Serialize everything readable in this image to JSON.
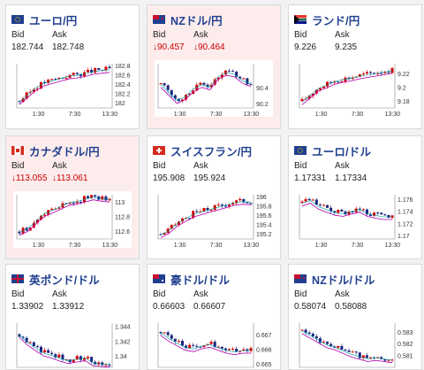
{
  "cards": [
    {
      "pair": "ユーロ/円",
      "flag": "eu-flag",
      "hl": false,
      "bid_label": "Bid",
      "ask_label": "Ask",
      "bid": "182.744",
      "ask": "182.748",
      "bid_down": false,
      "ask_down": false,
      "ymin": 181.9,
      "ymax": 182.85,
      "yticks": [
        "182.8",
        "182.6",
        "182.4",
        "182.2",
        "182"
      ],
      "xticks": [
        "1:30",
        "7:30",
        "13:30"
      ],
      "trend": [
        182.05,
        182.2,
        182.35,
        182.45,
        182.5,
        182.55,
        182.6,
        182.62,
        182.65,
        182.7,
        182.72,
        182.74
      ]
    },
    {
      "pair": "NZドル/円",
      "flag": "nz-flag",
      "hl": true,
      "bid_label": "Bid",
      "ask_label": "Ask",
      "bid": "↓90.457",
      "ask": "↓90.464",
      "bid_down": true,
      "ask_down": true,
      "ymin": 90.15,
      "ymax": 90.7,
      "yticks": [
        "90.4",
        "90.2"
      ],
      "xticks": [
        "1:30",
        "7:30",
        "13:30"
      ],
      "trend": [
        90.45,
        90.35,
        90.25,
        90.3,
        90.4,
        90.45,
        90.42,
        90.55,
        90.6,
        90.58,
        90.5,
        90.46
      ]
    },
    {
      "pair": "ランド/円",
      "flag": "za-flag",
      "hl": false,
      "bid_label": "Bid",
      "ask_label": "Ask",
      "bid": "9.226",
      "ask": "9.235",
      "bid_down": false,
      "ask_down": false,
      "ymin": 9.17,
      "ymax": 9.235,
      "yticks": [
        "9.22",
        "9.2",
        "9.18"
      ],
      "xticks": [
        "1:30",
        "7:30",
        "13:30"
      ],
      "trend": [
        9.18,
        9.19,
        9.2,
        9.205,
        9.21,
        9.213,
        9.215,
        9.218,
        9.22,
        9.222,
        9.224,
        9.226
      ]
    },
    {
      "pair": "カナダドル/円",
      "flag": "ca-flag",
      "hl": true,
      "bid_label": "Bid",
      "ask_label": "Ask",
      "bid": "↓113.055",
      "ask": "↓113.061",
      "bid_down": true,
      "ask_down": true,
      "ymin": 112.5,
      "ymax": 113.1,
      "yticks": [
        "113",
        "112.8",
        "112.6"
      ],
      "xticks": [
        "1:30",
        "7:30",
        "13:30"
      ],
      "trend": [
        112.6,
        112.65,
        112.75,
        112.85,
        112.9,
        112.95,
        113.0,
        113.02,
        113.05,
        113.08,
        113.06,
        113.05
      ]
    },
    {
      "pair": "スイスフラン/円",
      "flag": "ch-flag",
      "hl": false,
      "bid_label": "Bid",
      "ask_label": "Ask",
      "bid": "195.908",
      "ask": "195.924",
      "bid_down": false,
      "ask_down": false,
      "ymin": 195.1,
      "ymax": 196.05,
      "yticks": [
        "196",
        "195.8",
        "195.6",
        "195.4",
        "195.2"
      ],
      "xticks": [
        "1:30",
        "7:30",
        "13:30"
      ],
      "trend": [
        195.2,
        195.3,
        195.45,
        195.55,
        195.65,
        195.7,
        195.75,
        195.8,
        195.85,
        195.9,
        195.92,
        195.91
      ]
    },
    {
      "pair": "ユーロ/ドル",
      "flag": "eu-flag",
      "hl": false,
      "bid_label": "Bid",
      "ask_label": "Ask",
      "bid": "1.17331",
      "ask": "1.17334",
      "bid_down": false,
      "ask_down": false,
      "ymin": 1.1695,
      "ymax": 1.1768,
      "yticks": [
        "1.176",
        "1.174",
        "1.172",
        "1.17"
      ],
      "xticks": [
        "1:30",
        "7:30",
        "13:30"
      ],
      "trend": [
        1.1755,
        1.176,
        1.175,
        1.1745,
        1.174,
        1.1738,
        1.1742,
        1.1745,
        1.1738,
        1.1735,
        1.1733,
        1.1733
      ]
    },
    {
      "pair": "英ポンド/ドル",
      "flag": "uk-flag",
      "hl": false,
      "bid_label": "Bid",
      "ask_label": "Ask",
      "bid": "1.33902",
      "ask": "1.33912",
      "bid_down": false,
      "ask_down": false,
      "ymin": 1.3385,
      "ymax": 1.3445,
      "yticks": [
        "1.344",
        "1.342",
        "1.34"
      ],
      "xticks": [],
      "trend": [
        1.343,
        1.342,
        1.3412,
        1.3405,
        1.3402,
        1.3398,
        1.3395,
        1.3397,
        1.3399,
        1.3392,
        1.3391,
        1.339
      ]
    },
    {
      "pair": "豪ドル/ドル",
      "flag": "au-flag",
      "hl": false,
      "bid_label": "Bid",
      "ask_label": "Ask",
      "bid": "0.66603",
      "ask": "0.66607",
      "bid_down": false,
      "ask_down": false,
      "ymin": 0.6648,
      "ymax": 0.6678,
      "yticks": [
        "0.667",
        "0.666",
        "0.665"
      ],
      "xticks": [],
      "trend": [
        0.6672,
        0.6668,
        0.6665,
        0.6662,
        0.6661,
        0.6663,
        0.6664,
        0.6662,
        0.666,
        0.6659,
        0.666,
        0.666
      ]
    },
    {
      "pair": "NZドル/ドル",
      "flag": "nz-flag",
      "hl": false,
      "bid_label": "Bid",
      "ask_label": "Ask",
      "bid": "0.58074",
      "ask": "0.58088",
      "bid_down": false,
      "ask_down": false,
      "ymin": 0.58,
      "ymax": 0.5838,
      "yticks": [
        "0.583",
        "0.582",
        "0.581"
      ],
      "xticks": [],
      "trend": [
        0.5832,
        0.5828,
        0.5824,
        0.582,
        0.5818,
        0.5815,
        0.5812,
        0.581,
        0.5808,
        0.5809,
        0.5808,
        0.5807
      ]
    }
  ]
}
